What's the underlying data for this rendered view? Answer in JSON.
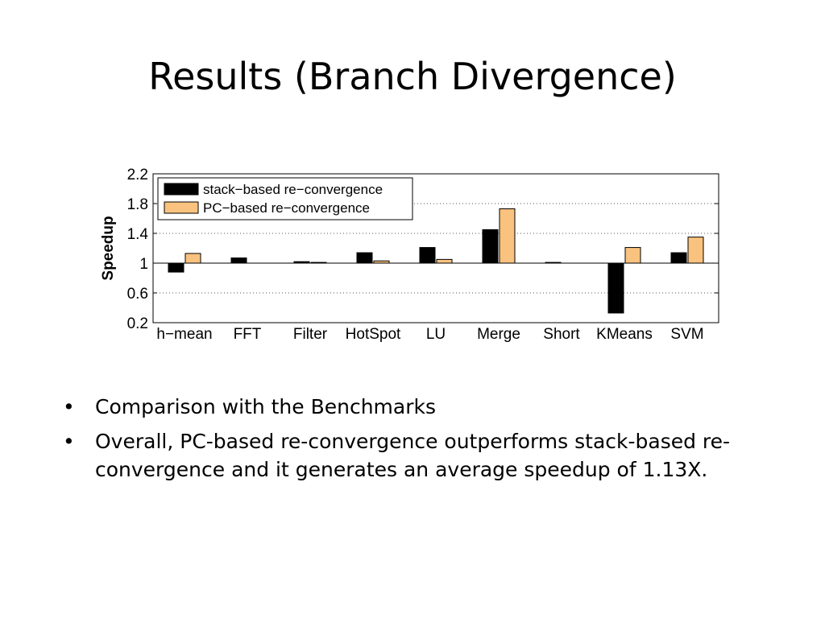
{
  "slide": {
    "title": "Results (Branch Divergence)",
    "bullets": [
      "Comparison with the Benchmarks",
      "Overall, PC-based re-convergence outperforms stack-based re-convergence and it generates an average speedup of 1.13X."
    ],
    "bullet_glyph": "•"
  },
  "chart_data": {
    "type": "bar",
    "title": "",
    "xlabel": "",
    "ylabel": "Speedup",
    "ylim": [
      0.2,
      2.2
    ],
    "yticks": [
      "0.2",
      "0.6",
      "1",
      "1.4",
      "1.8",
      "2.2"
    ],
    "baseline": 1,
    "grid": "horizontal-dotted",
    "legend_position": "top-left",
    "categories": [
      "h−mean",
      "FFT",
      "Filter",
      "HotSpot",
      "LU",
      "Merge",
      "Short",
      "KMeans",
      "SVM"
    ],
    "series": [
      {
        "name": "stack−based re−convergence",
        "color": "#000000",
        "values": [
          0.88,
          1.07,
          1.02,
          1.14,
          1.21,
          1.45,
          1.01,
          0.33,
          1.14
        ]
      },
      {
        "name": "PC−based re−convergence",
        "color": "#f9c27f",
        "values": [
          1.13,
          1.0,
          1.01,
          1.03,
          1.05,
          1.73,
          1.0,
          1.21,
          1.35
        ]
      }
    ]
  }
}
